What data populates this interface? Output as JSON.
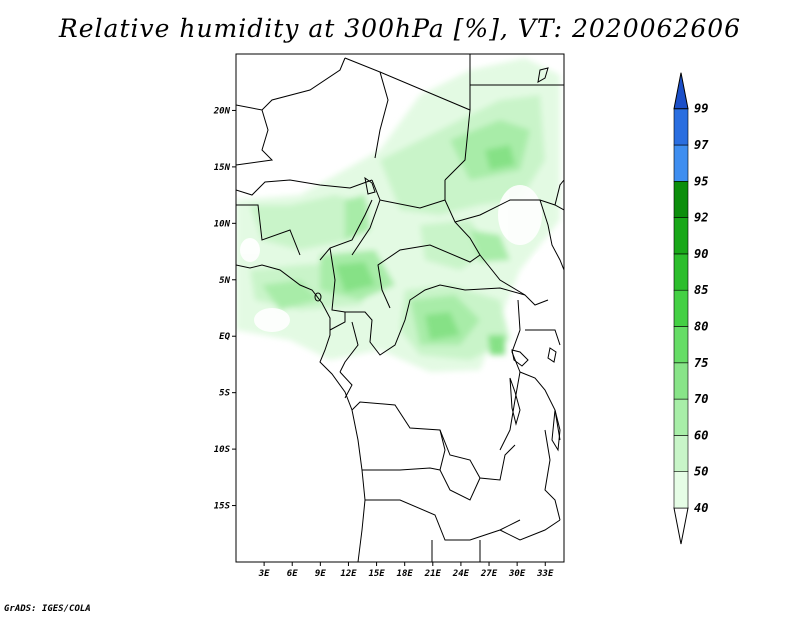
{
  "title": "Relative humidity at 300hPa [%], VT: 2020062606",
  "credit": "GrADS: IGES/COLA",
  "map": {
    "lon_range": [
      0,
      35
    ],
    "lat_range": [
      -20,
      25
    ],
    "lat_ticks": [
      {
        "value": 20,
        "label": "20N"
      },
      {
        "value": 15,
        "label": "15N"
      },
      {
        "value": 10,
        "label": "10N"
      },
      {
        "value": 5,
        "label": "5N"
      },
      {
        "value": 0,
        "label": "EQ"
      },
      {
        "value": -5,
        "label": "5S"
      },
      {
        "value": -10,
        "label": "10S"
      },
      {
        "value": -15,
        "label": "15S"
      }
    ],
    "lon_ticks": [
      {
        "value": 3,
        "label": "3E"
      },
      {
        "value": 6,
        "label": "6E"
      },
      {
        "value": 9,
        "label": "9E"
      },
      {
        "value": 12,
        "label": "12E"
      },
      {
        "value": 15,
        "label": "15E"
      },
      {
        "value": 18,
        "label": "18E"
      },
      {
        "value": 21,
        "label": "21E"
      },
      {
        "value": 24,
        "label": "24E"
      },
      {
        "value": 27,
        "label": "27E"
      },
      {
        "value": 30,
        "label": "30E"
      },
      {
        "value": 33,
        "label": "33E"
      }
    ]
  },
  "colorbar": {
    "levels": [
      "40",
      "50",
      "60",
      "70",
      "75",
      "80",
      "85",
      "90",
      "92",
      "95",
      "97",
      "99"
    ],
    "colors": [
      "#e6fde6",
      "#c8f5c8",
      "#a8eea8",
      "#88e488",
      "#66dd66",
      "#44d044",
      "#2cbe2c",
      "#19a819",
      "#0c8e0c",
      "#3f8ef0",
      "#2a6ee0",
      "#1b4fc8"
    ]
  }
}
